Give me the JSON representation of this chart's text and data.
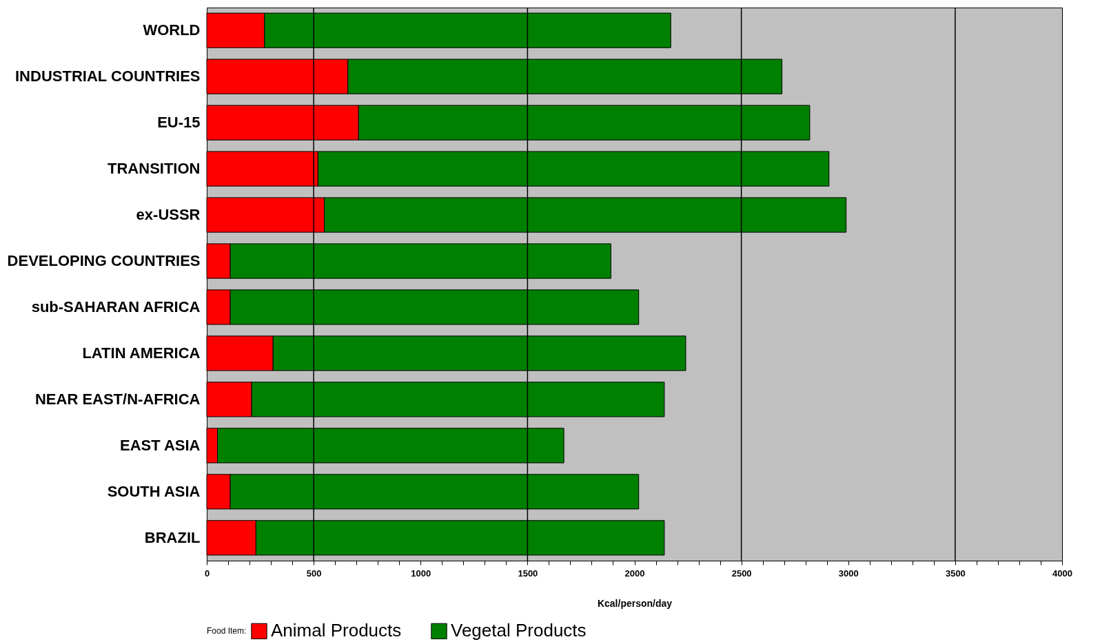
{
  "chart_data": {
    "type": "bar",
    "orientation": "horizontal",
    "stacked": true,
    "categories": [
      "WORLD",
      "INDUSTRIAL COUNTRIES",
      "EU-15",
      "TRANSITION",
      "ex-USSR",
      "DEVELOPING COUNTRIES",
      "sub-SAHARAN AFRICA",
      "LATIN AMERICA",
      "NEAR EAST/N-AFRICA",
      "EAST ASIA",
      "SOUTH ASIA",
      "BRAZIL"
    ],
    "series": [
      {
        "name": "Animal Products",
        "color": "#ff0000",
        "values": [
          270,
          660,
          710,
          520,
          550,
          110,
          110,
          310,
          210,
          50,
          110,
          230
        ]
      },
      {
        "name": "Vegetal Products",
        "color": "#008000",
        "values": [
          1900,
          2030,
          2110,
          2390,
          2440,
          1780,
          1910,
          1930,
          1930,
          1620,
          1910,
          1910
        ]
      }
    ],
    "xlabel": "Kcal/person/day",
    "legend_title": "Food Item:",
    "legend": "bottom",
    "xlim": [
      0,
      4000
    ],
    "xticks": [
      0,
      {
        "value": 100,
        "label": null
      },
      {
        "value": 200,
        "label": null
      },
      {
        "value": 300,
        "label": null
      },
      {
        "value": 400,
        "label": null
      },
      500,
      {
        "value": 600,
        "label": null
      },
      {
        "value": 700,
        "label": null
      },
      {
        "value": 800,
        "label": null
      },
      {
        "value": 900,
        "label": null
      },
      1000,
      {
        "value": 1100,
        "label": null
      },
      {
        "value": 1200,
        "label": null
      },
      {
        "value": 1300,
        "label": null
      },
      {
        "value": 1400,
        "label": null
      },
      1500,
      {
        "value": 1600,
        "label": null
      },
      {
        "value": 1700,
        "label": null
      },
      {
        "value": 1800,
        "label": null
      },
      {
        "value": 1900,
        "label": null
      },
      2000,
      {
        "value": 2100,
        "label": null
      },
      {
        "value": 2200,
        "label": null
      },
      {
        "value": 2300,
        "label": null
      },
      {
        "value": 2400,
        "label": null
      },
      2500,
      {
        "value": 2600,
        "label": null
      },
      {
        "value": 2700,
        "label": null
      },
      {
        "value": 2800,
        "label": null
      },
      {
        "value": 2900,
        "label": null
      },
      3000,
      {
        "value": 3100,
        "label": null
      },
      {
        "value": 3200,
        "label": null
      },
      {
        "value": 3300,
        "label": null
      },
      {
        "value": 3400,
        "label": null
      },
      3500,
      {
        "value": 3600,
        "label": null
      },
      {
        "value": 3700,
        "label": null
      },
      {
        "value": 3800,
        "label": null
      },
      {
        "value": 3900,
        "label": null
      },
      4000
    ],
    "ref_lines": [
      {
        "axis": "x",
        "value": 500,
        "color": "#000000"
      },
      {
        "axis": "x",
        "value": 1500,
        "color": "#000000"
      },
      {
        "axis": "x",
        "value": 2500,
        "color": "#000000"
      },
      {
        "axis": "x",
        "value": 3500,
        "color": "#000000"
      }
    ]
  }
}
